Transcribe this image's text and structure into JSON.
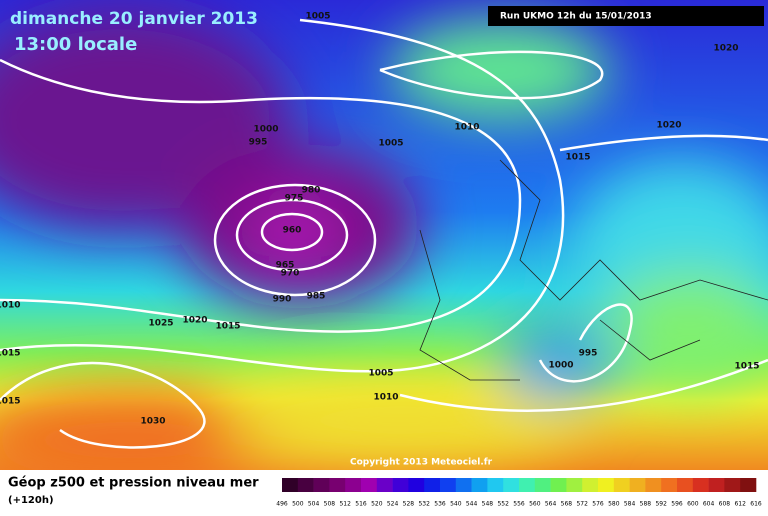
{
  "header": {
    "date": "dimanche 20 janvier 2013",
    "time": "13:00 locale",
    "run": "Run UKMO 12h du 15/01/2013"
  },
  "isobar_labels": [
    "1005",
    "1020",
    "1010",
    "1020",
    "1000",
    "995",
    "1005",
    "1015",
    "980",
    "975",
    "960",
    "965",
    "970",
    "990",
    "985",
    "1010",
    "1025",
    "1020",
    "1015",
    "1015",
    "1000",
    "995",
    "1005",
    "1015",
    "1010",
    "1015",
    "1030"
  ],
  "copyright": "Copyright 2013 Meteociel.fr",
  "legend": {
    "title": "Géop z500 et pression niveau mer",
    "subtitle": "(+120h)",
    "scale": [
      "496",
      "500",
      "504",
      "508",
      "512",
      "516",
      "520",
      "524",
      "528",
      "532",
      "536",
      "540",
      "544",
      "548",
      "552",
      "556",
      "560",
      "564",
      "568",
      "572",
      "576",
      "580",
      "584",
      "588",
      "592",
      "596",
      "600",
      "604",
      "608",
      "612",
      "616"
    ]
  }
}
